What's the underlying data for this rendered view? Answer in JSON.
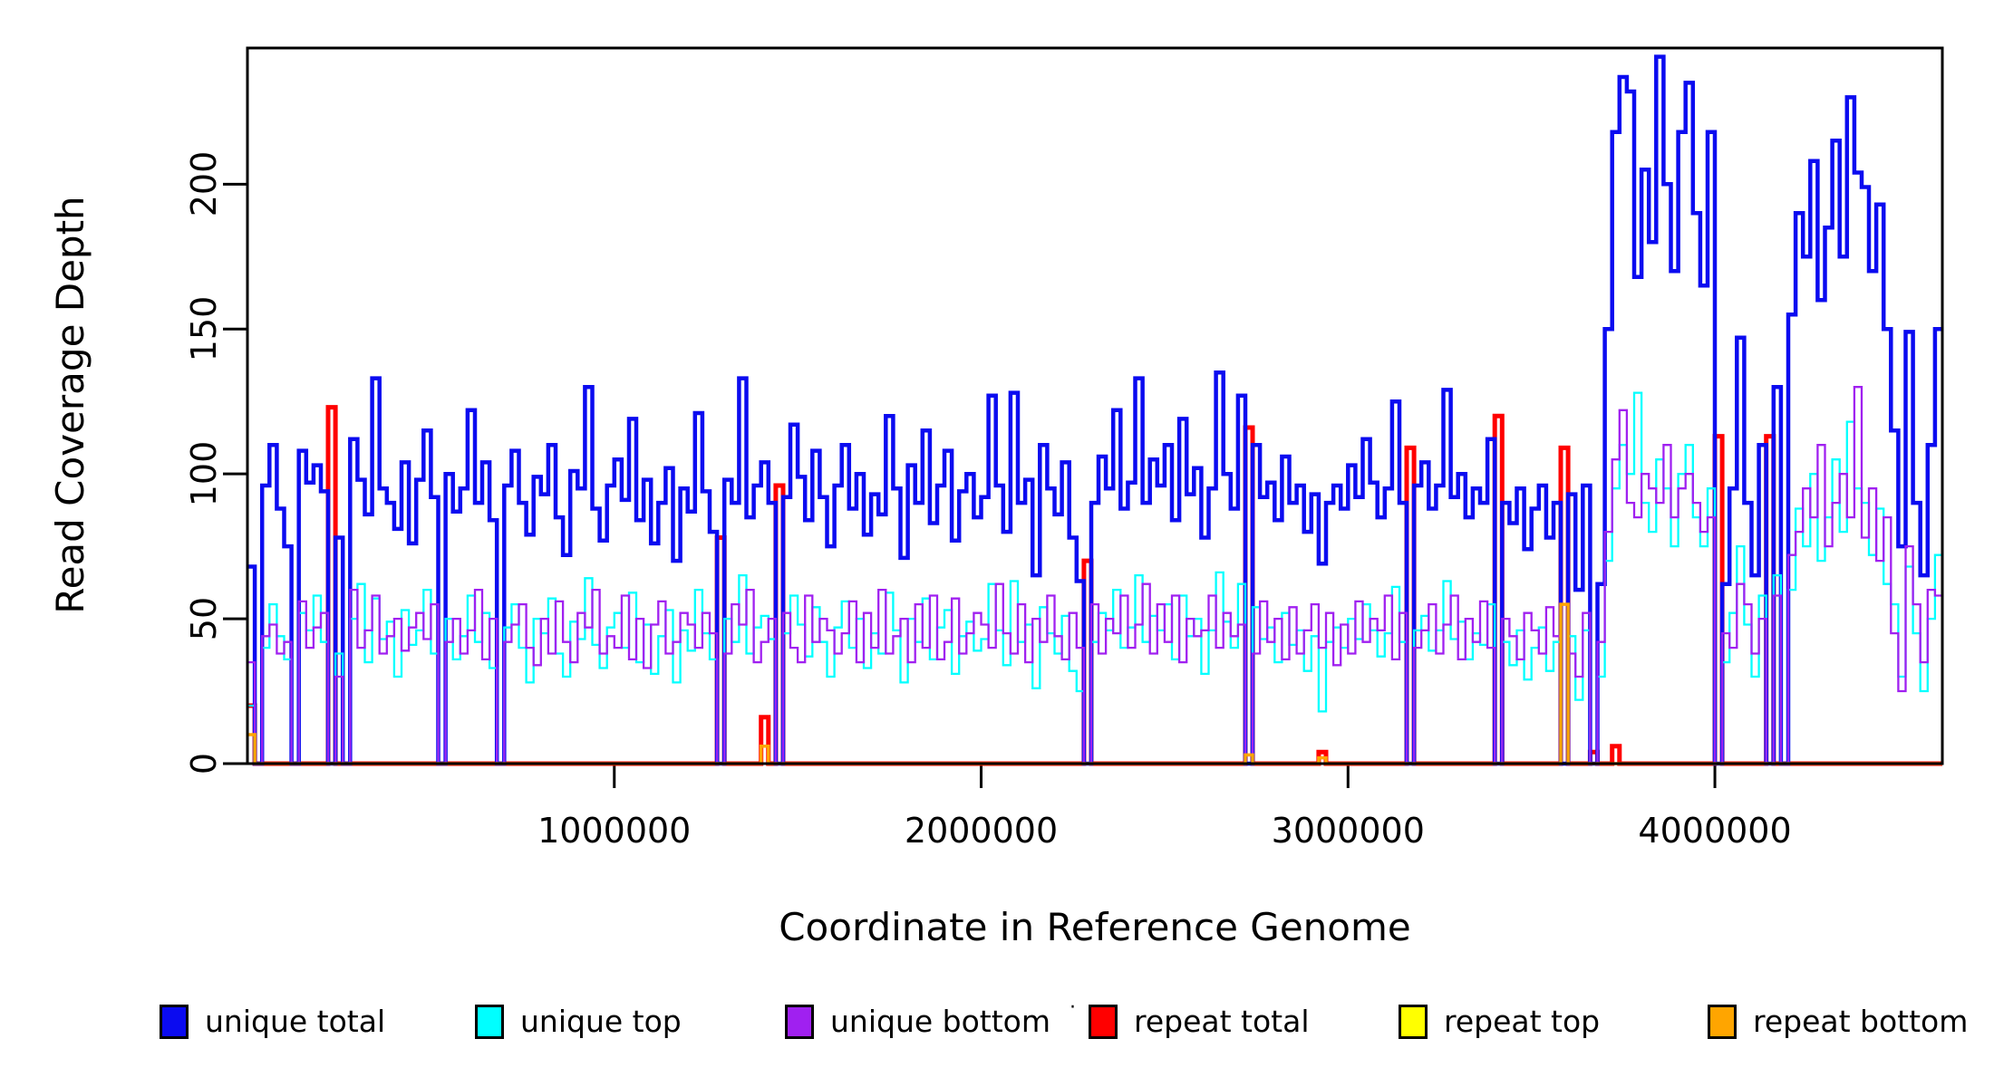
{
  "figure": {
    "background": "#ffffff"
  },
  "axes": {
    "x": {
      "title": "Coordinate in Reference Genome",
      "ticks": [
        "1000000",
        "2000000",
        "3000000",
        "4000000"
      ],
      "tick_values": [
        1000000,
        2000000,
        3000000,
        4000000
      ],
      "range": [
        0,
        4620000
      ]
    },
    "y": {
      "title": "Read Coverage Depth",
      "ticks": [
        "0",
        "50",
        "100",
        "150",
        "200"
      ],
      "tick_values": [
        0,
        50,
        100,
        150,
        200
      ],
      "range": [
        0,
        247
      ]
    }
  },
  "legend": {
    "stray_mark": "·",
    "items": [
      {
        "label": "unique total",
        "color": "#0b0bf0"
      },
      {
        "label": "unique top",
        "color": "#00ffff"
      },
      {
        "label": "unique bottom",
        "color": "#a020f0"
      },
      {
        "label": "repeat total",
        "color": "#ff0000"
      },
      {
        "label": "repeat top",
        "color": "#ffff00"
      },
      {
        "label": "repeat bottom",
        "color": "#ffa500"
      }
    ]
  },
  "chart_data": {
    "type": "line",
    "step": true,
    "title": "",
    "xlabel": "Coordinate in Reference Genome",
    "ylabel": "Read Coverage Depth",
    "xlim": [
      0,
      4620000
    ],
    "ylim": [
      0,
      247
    ],
    "grid": false,
    "legend_position": "bottom",
    "n_bins": 231,
    "bin_size": 20000,
    "x_start": 0,
    "draw_order": [
      3,
      0,
      1,
      2,
      4,
      5
    ],
    "series": [
      {
        "name": "unique total",
        "color": "#0b0bf0",
        "width": 4.5,
        "values": [
          68,
          0,
          96,
          110,
          88,
          75,
          0,
          108,
          97,
          103,
          94,
          0,
          78,
          0,
          112,
          98,
          86,
          133,
          95,
          90,
          81,
          104,
          76,
          98,
          115,
          92,
          0,
          100,
          87,
          95,
          122,
          90,
          104,
          84,
          0,
          96,
          108,
          90,
          79,
          99,
          93,
          110,
          85,
          72,
          101,
          95,
          130,
          88,
          77,
          96,
          105,
          91,
          119,
          84,
          98,
          76,
          90,
          102,
          70,
          95,
          87,
          121,
          94,
          80,
          0,
          98,
          90,
          133,
          85,
          96,
          104,
          90,
          0,
          92,
          117,
          99,
          84,
          108,
          92,
          75,
          96,
          110,
          88,
          100,
          79,
          93,
          86,
          120,
          95,
          71,
          103,
          90,
          115,
          83,
          96,
          108,
          77,
          94,
          100,
          85,
          92,
          127,
          96,
          80,
          128,
          90,
          98,
          65,
          110,
          95,
          86,
          104,
          78,
          63,
          0,
          90,
          106,
          95,
          122,
          88,
          97,
          133,
          90,
          105,
          96,
          110,
          84,
          119,
          93,
          102,
          78,
          95,
          135,
          100,
          88,
          127,
          0,
          110,
          92,
          97,
          84,
          106,
          90,
          96,
          80,
          93,
          69,
          90,
          96,
          88,
          103,
          92,
          112,
          97,
          85,
          95,
          125,
          90,
          0,
          96,
          104,
          88,
          96,
          129,
          92,
          100,
          85,
          95,
          90,
          112,
          0,
          90,
          83,
          95,
          74,
          88,
          96,
          78,
          90,
          0,
          93,
          60,
          96,
          0,
          62,
          150,
          218,
          237,
          232,
          168,
          205,
          180,
          244,
          200,
          170,
          218,
          235,
          190,
          165,
          218,
          0,
          62,
          95,
          147,
          90,
          65,
          110,
          0,
          130,
          0,
          155,
          190,
          175,
          208,
          160,
          185,
          215,
          175,
          230,
          204,
          199,
          170,
          193,
          150,
          115,
          75,
          149,
          90,
          65,
          110,
          150
        ]
      },
      {
        "name": "unique top",
        "color": "#00ffff",
        "width": 2.3,
        "values": [
          20,
          0,
          40,
          55,
          44,
          36,
          0,
          52,
          46,
          58,
          42,
          0,
          38,
          0,
          50,
          62,
          35,
          57,
          43,
          49,
          30,
          53,
          41,
          46,
          60,
          38,
          0,
          50,
          36,
          44,
          58,
          42,
          52,
          33,
          0,
          47,
          55,
          40,
          28,
          50,
          45,
          57,
          38,
          30,
          49,
          43,
          64,
          41,
          33,
          47,
          52,
          40,
          59,
          35,
          48,
          31,
          44,
          53,
          28,
          46,
          39,
          60,
          45,
          36,
          0,
          50,
          42,
          65,
          38,
          47,
          51,
          43,
          0,
          45,
          58,
          48,
          37,
          54,
          42,
          30,
          47,
          56,
          40,
          50,
          33,
          45,
          38,
          59,
          46,
          28,
          50,
          42,
          57,
          36,
          47,
          53,
          31,
          44,
          49,
          39,
          43,
          62,
          46,
          34,
          63,
          42,
          48,
          26,
          54,
          45,
          38,
          51,
          32,
          25,
          0,
          42,
          52,
          46,
          60,
          40,
          47,
          65,
          42,
          51,
          46,
          55,
          36,
          58,
          44,
          50,
          31,
          46,
          66,
          49,
          40,
          62,
          0,
          54,
          43,
          47,
          35,
          52,
          41,
          46,
          32,
          44,
          18,
          42,
          47,
          40,
          50,
          43,
          55,
          46,
          37,
          45,
          61,
          42,
          0,
          46,
          51,
          39,
          46,
          63,
          43,
          49,
          36,
          45,
          41,
          55,
          0,
          42,
          34,
          46,
          29,
          40,
          47,
          32,
          42,
          0,
          44,
          22,
          46,
          0,
          30,
          70,
          95,
          110,
          100,
          128,
          90,
          80,
          105,
          95,
          75,
          100,
          110,
          85,
          75,
          95,
          0,
          35,
          52,
          75,
          48,
          30,
          58,
          0,
          65,
          0,
          60,
          88,
          75,
          100,
          70,
          85,
          105,
          80,
          118,
          95,
          90,
          72,
          88,
          62,
          55,
          30,
          68,
          45,
          25,
          50,
          72
        ]
      },
      {
        "name": "unique bottom",
        "color": "#a020f0",
        "width": 2.3,
        "values": [
          35,
          0,
          44,
          48,
          38,
          42,
          0,
          56,
          40,
          47,
          52,
          0,
          30,
          0,
          60,
          40,
          46,
          58,
          38,
          44,
          50,
          39,
          47,
          52,
          43,
          55,
          0,
          42,
          50,
          38,
          46,
          60,
          36,
          50,
          0,
          42,
          48,
          55,
          40,
          34,
          50,
          38,
          56,
          42,
          35,
          52,
          47,
          60,
          38,
          44,
          40,
          58,
          36,
          50,
          33,
          48,
          56,
          38,
          42,
          52,
          48,
          40,
          52,
          45,
          0,
          38,
          55,
          48,
          60,
          35,
          42,
          50,
          0,
          52,
          40,
          35,
          58,
          42,
          50,
          46,
          38,
          45,
          56,
          35,
          52,
          40,
          60,
          38,
          44,
          50,
          35,
          55,
          40,
          58,
          36,
          42,
          57,
          38,
          45,
          52,
          48,
          40,
          62,
          45,
          38,
          55,
          35,
          50,
          42,
          58,
          44,
          36,
          52,
          40,
          0,
          55,
          38,
          50,
          45,
          58,
          40,
          48,
          62,
          38,
          55,
          42,
          58,
          35,
          50,
          44,
          46,
          58,
          40,
          52,
          44,
          48,
          0,
          38,
          56,
          42,
          50,
          36,
          54,
          38,
          46,
          55,
          40,
          52,
          34,
          48,
          38,
          56,
          42,
          50,
          46,
          58,
          36,
          52,
          0,
          40,
          46,
          55,
          38,
          48,
          58,
          36,
          50,
          42,
          56,
          40,
          0,
          50,
          44,
          36,
          52,
          46,
          38,
          54,
          44,
          0,
          38,
          30,
          52,
          0,
          42,
          80,
          105,
          122,
          90,
          85,
          100,
          95,
          90,
          110,
          85,
          95,
          100,
          90,
          80,
          85,
          0,
          45,
          40,
          62,
          55,
          38,
          50,
          0,
          58,
          0,
          72,
          80,
          95,
          85,
          110,
          75,
          90,
          100,
          85,
          130,
          78,
          95,
          70,
          85,
          45,
          25,
          75,
          55,
          35,
          60,
          58
        ]
      },
      {
        "name": "repeat total",
        "color": "#ff0000",
        "width": 5,
        "base": 0,
        "sparse": {
          "0": 20,
          "11": 123,
          "64": 78,
          "70": 16,
          "72": 96,
          "114": 70,
          "136": 116,
          "146": 4,
          "158": 109,
          "170": 120,
          "179": 109,
          "183": 4,
          "186": 6,
          "200": 113,
          "207": 113
        }
      },
      {
        "name": "repeat top",
        "color": "#ffff00",
        "width": 2.3,
        "base": 0,
        "sparse": {}
      },
      {
        "name": "repeat bottom",
        "color": "#ffa500",
        "width": 3.5,
        "base": 0,
        "sparse": {
          "0": 10,
          "70": 6,
          "136": 3,
          "146": 2,
          "179": 55
        }
      }
    ]
  }
}
